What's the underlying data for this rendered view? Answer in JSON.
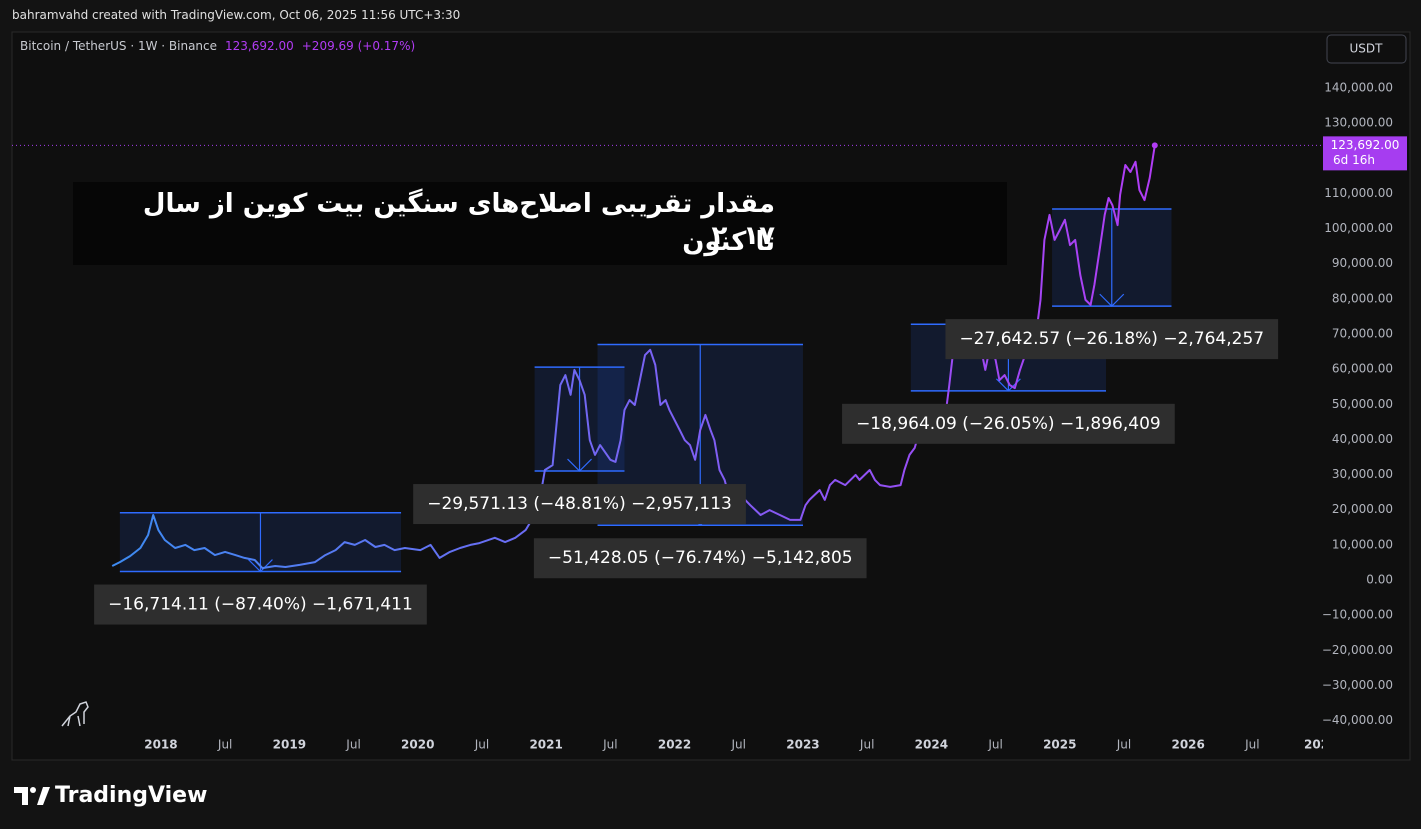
{
  "header": {
    "credit": "bahramvahd created with TradingView.com, Oct 06, 2025 11:56 UTC+3:30"
  },
  "chart_data": {
    "type": "line",
    "title_lines": [
      "مقدار تقریبی اصلاح‌های سنگین بیت کوین از سال ۲۰۱۷",
      "تا کنون"
    ],
    "symbol": "Bitcoin / TetherUS · 1W · Binance",
    "last_price": {
      "value": 123692.0,
      "label": "123,692.00"
    },
    "change_label": "+209.69 (+0.17%)",
    "countdown": "6d 16h",
    "currency": "USDT",
    "color_start": "#3d8bf2",
    "color_end": "#b23cf5",
    "price_color": "#a63df0",
    "range_color": "#2f6bff",
    "range_fill": "rgba(41,98,255,0.13)",
    "x": [
      2017.62,
      2017.68,
      2017.76,
      2017.84,
      2017.9,
      2017.94,
      2017.98,
      2018.03,
      2018.11,
      2018.19,
      2018.26,
      2018.34,
      2018.42,
      2018.5,
      2018.58,
      2018.65,
      2018.73,
      2018.79,
      2018.89,
      2018.97,
      2019.08,
      2019.2,
      2019.28,
      2019.36,
      2019.43,
      2019.51,
      2019.59,
      2019.67,
      2019.74,
      2019.82,
      2019.9,
      2020.02,
      2020.1,
      2020.17,
      2020.25,
      2020.33,
      2020.41,
      2020.48,
      2020.6,
      2020.68,
      2020.76,
      2020.84,
      2020.91,
      2020.95,
      2020.99,
      2021.05,
      2021.11,
      2021.15,
      2021.19,
      2021.22,
      2021.26,
      2021.3,
      2021.34,
      2021.38,
      2021.42,
      2021.5,
      2021.54,
      2021.58,
      2021.61,
      2021.65,
      2021.69,
      2021.73,
      2021.77,
      2021.81,
      2021.85,
      2021.89,
      2021.93,
      2021.96,
      2022.0,
      2022.04,
      2022.08,
      2022.12,
      2022.16,
      2022.2,
      2022.24,
      2022.28,
      2022.31,
      2022.35,
      2022.39,
      2022.43,
      2022.47,
      2022.51,
      2022.55,
      2022.59,
      2022.63,
      2022.67,
      2022.74,
      2022.82,
      2022.9,
      2022.98,
      2023.02,
      2023.05,
      2023.09,
      2023.13,
      2023.17,
      2023.21,
      2023.25,
      2023.33,
      2023.41,
      2023.44,
      2023.52,
      2023.56,
      2023.6,
      2023.68,
      2023.76,
      2023.79,
      2023.83,
      2023.87,
      2023.91,
      2023.99,
      2024.07,
      2024.11,
      2024.14,
      2024.18,
      2024.22,
      2024.26,
      2024.3,
      2024.34,
      2024.38,
      2024.42,
      2024.46,
      2024.5,
      2024.53,
      2024.57,
      2024.61,
      2024.65,
      2024.69,
      2024.73,
      2024.77,
      2024.81,
      2024.85,
      2024.88,
      2024.92,
      2024.96,
      2025.0,
      2025.04,
      2025.08,
      2025.12,
      2025.16,
      2025.2,
      2025.24,
      2025.27,
      2025.31,
      2025.35,
      2025.38,
      2025.41,
      2025.45,
      2025.47,
      2025.51,
      2025.55,
      2025.59,
      2025.62,
      2025.66,
      2025.7,
      2025.74
    ],
    "values": [
      4000,
      5100,
      6800,
      9100,
      12800,
      18500,
      14200,
      11400,
      9100,
      10000,
      8500,
      9100,
      7100,
      8000,
      7100,
      6300,
      5700,
      3400,
      4000,
      3700,
      4300,
      5100,
      7100,
      8500,
      10800,
      10000,
      11400,
      9400,
      10000,
      8500,
      9100,
      8500,
      10000,
      6300,
      8000,
      9100,
      10000,
      10500,
      12000,
      10800,
      12000,
      14200,
      18500,
      22800,
      31300,
      32700,
      55500,
      58300,
      52700,
      59800,
      56900,
      52700,
      39800,
      35600,
      38400,
      34200,
      33600,
      39800,
      48400,
      51200,
      49800,
      56900,
      64000,
      65500,
      61200,
      49800,
      51200,
      48400,
      45500,
      42700,
      39800,
      38400,
      34200,
      42700,
      47000,
      42700,
      39800,
      31300,
      28500,
      22800,
      19900,
      21300,
      22800,
      21300,
      19900,
      18500,
      19900,
      18500,
      17100,
      17100,
      21300,
      22800,
      24200,
      25600,
      22800,
      27000,
      28500,
      27000,
      29900,
      28500,
      31300,
      28500,
      27000,
      26500,
      27000,
      31300,
      35600,
      37600,
      42700,
      44100,
      42700,
      47000,
      55500,
      68300,
      69700,
      66900,
      65500,
      64000,
      66900,
      59800,
      66900,
      62600,
      56900,
      58300,
      55500,
      54600,
      59800,
      64000,
      65500,
      68300,
      79700,
      96800,
      103900,
      96800,
      99600,
      102500,
      95300,
      96800,
      86800,
      79700,
      78300,
      84000,
      93900,
      103900,
      108700,
      106700,
      101000,
      109600,
      118100,
      116100,
      119000,
      111000,
      108100,
      114400,
      123692
    ],
    "xlim": [
      2016.84,
      2027.05
    ],
    "ylim": [
      -51220,
      155950
    ],
    "xticks": [
      2018,
      {
        "value": 2018.5,
        "label": "Jul"
      },
      2019,
      {
        "value": 2019.5,
        "label": "Jul"
      },
      2020,
      {
        "value": 2020.5,
        "label": "Jul"
      },
      2021,
      {
        "value": 2021.5,
        "label": "Jul"
      },
      2022,
      {
        "value": 2022.5,
        "label": "Jul"
      },
      2023,
      {
        "value": 2023.5,
        "label": "Jul"
      },
      2024,
      {
        "value": 2024.5,
        "label": "Jul"
      },
      2025,
      {
        "value": 2025.5,
        "label": "Jul"
      },
      2026,
      {
        "value": 2026.5,
        "label": "Jul"
      },
      {
        "value": 2027,
        "label": "202"
      }
    ],
    "yticks": [
      {
        "value": 140000,
        "label": "140,000.00"
      },
      {
        "value": 130000,
        "label": "130,000.00"
      },
      {
        "value": 110000,
        "label": "110,000.00"
      },
      {
        "value": 100000,
        "label": "100,000.00"
      },
      {
        "value": 90000,
        "label": "90,000.00"
      },
      {
        "value": 80000,
        "label": "80,000.00"
      },
      {
        "value": 70000,
        "label": "70,000.00"
      },
      {
        "value": 60000,
        "label": "60,000.00"
      },
      {
        "value": 50000,
        "label": "50,000.00"
      },
      {
        "value": 40000,
        "label": "40,000.00"
      },
      {
        "value": 30000,
        "label": "30,000.00"
      },
      {
        "value": 20000,
        "label": "20,000.00"
      },
      {
        "value": 10000,
        "label": "10,000.00"
      },
      {
        "value": 0,
        "label": "0.00"
      },
      {
        "value": -10000,
        "label": "−10,000.00"
      },
      {
        "value": -20000,
        "label": "−20,000.00"
      },
      {
        "value": -30000,
        "label": "−30,000.00"
      },
      {
        "value": -40000,
        "label": "−40,000.00"
      }
    ],
    "ranges": [
      {
        "x": [
          2017.68,
          2019.87
        ],
        "y": [
          19124,
          2409.89
        ],
        "label": "−16,714.11 (−87.40%) −1,671,411"
      },
      {
        "x": [
          2020.91,
          2021.61
        ],
        "y": [
          60584,
          31013
        ],
        "label": "−29,571.13 (−48.81%) −2,957,113"
      },
      {
        "x": [
          2021.4,
          2023.0
        ],
        "y": [
          67016,
          15588
        ],
        "label": "−51,428.05 (−76.74%) −5,142,805"
      },
      {
        "x": [
          2023.84,
          2025.36
        ],
        "y": [
          72799,
          53835
        ],
        "label": "−18,964.09 (−26.05%) −1,896,409"
      },
      {
        "x": [
          2024.94,
          2025.87
        ],
        "y": [
          105586,
          77943
        ],
        "label": "−27,642.57 (−26.18%) −2,764,257"
      }
    ]
  },
  "footer": {
    "brand": "TradingView"
  }
}
